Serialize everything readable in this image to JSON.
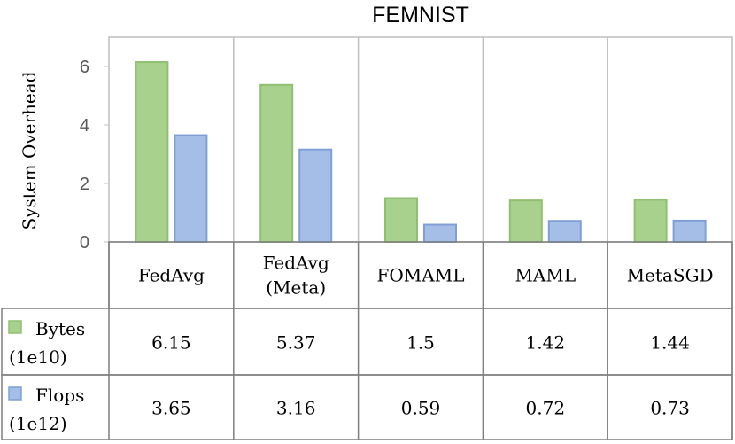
{
  "chart_data": {
    "type": "bar",
    "title": "FEMNIST",
    "ylabel": "System Overhead",
    "xlabel": "",
    "ylim": [
      0,
      7
    ],
    "yticks": [
      0,
      2,
      4,
      6
    ],
    "categories": [
      [
        "FedAvg"
      ],
      [
        "FedAvg",
        "(Meta)"
      ],
      [
        "FOMAML"
      ],
      [
        "MAML"
      ],
      [
        "MetaSGD"
      ]
    ],
    "series": [
      {
        "name": "Bytes",
        "unit": "(1e10)",
        "color": "#a9d18e",
        "edge": "#8fbf70",
        "values": [
          6.15,
          5.37,
          1.5,
          1.42,
          1.44
        ],
        "labels": [
          "6.15",
          "5.37",
          "1.5",
          "1.42",
          "1.44"
        ]
      },
      {
        "name": "Flops",
        "unit": "(1e12)",
        "color": "#a4bee8",
        "edge": "#7f9fd6",
        "values": [
          3.65,
          3.16,
          0.59,
          0.72,
          0.73
        ],
        "labels": [
          "3.65",
          "3.16",
          "0.59",
          "0.72",
          "0.73"
        ]
      }
    ],
    "grid": false,
    "legend": "data-table"
  }
}
